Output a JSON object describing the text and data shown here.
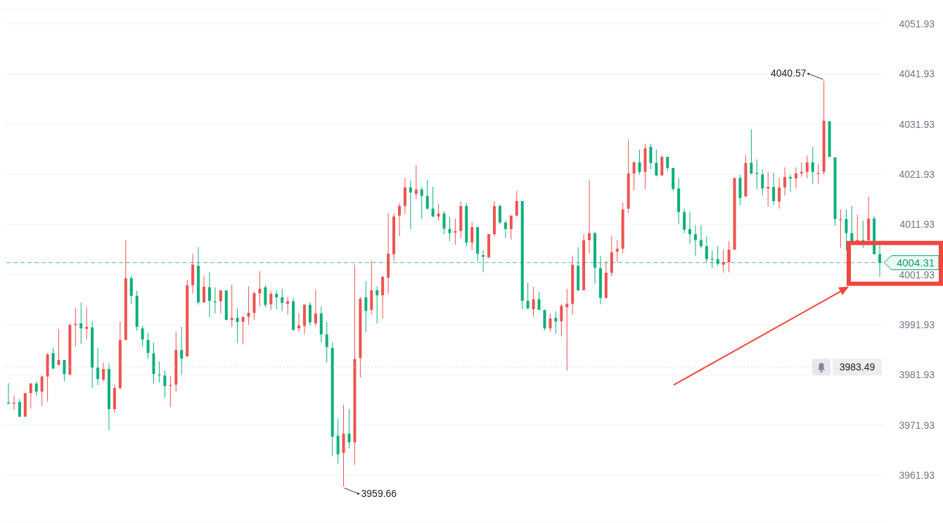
{
  "chart_data": {
    "type": "candlestick",
    "categories": [
      null,
      null,
      null,
      null,
      null,
      null,
      null,
      null,
      null,
      null,
      null,
      null,
      null,
      null,
      null,
      null,
      null,
      null,
      null,
      null,
      null,
      null,
      null,
      null,
      null,
      null,
      null,
      null,
      null,
      null,
      null,
      null,
      null,
      null,
      null,
      null,
      null,
      null,
      null,
      null,
      null,
      null,
      null,
      null,
      null,
      null,
      null,
      null,
      null,
      null,
      null,
      null,
      null,
      null,
      null,
      null,
      null,
      null,
      null,
      null,
      null,
      null,
      null,
      null,
      null,
      null,
      null,
      null,
      null,
      null,
      null,
      null,
      null,
      null,
      null,
      null,
      null,
      null,
      null,
      null,
      null,
      null,
      null,
      null,
      null,
      null,
      null,
      null,
      null,
      null,
      null,
      null,
      null,
      null,
      null,
      null,
      null,
      null,
      null,
      null,
      null,
      null,
      null,
      null,
      null,
      null,
      null,
      null,
      null,
      null,
      null,
      null,
      null,
      null,
      null,
      null,
      null,
      null,
      null,
      null,
      null,
      null,
      null,
      null,
      null,
      null,
      null,
      null,
      null,
      null,
      null,
      null,
      null,
      null,
      null,
      null,
      null,
      null,
      null,
      null,
      null,
      null,
      null,
      null,
      null,
      null,
      null,
      null,
      null,
      null,
      null,
      null,
      null,
      null,
      null,
      null,
      null
    ],
    "ohlc": [
      [
        3976.4,
        3980.3,
        3976.1,
        3976.2
      ],
      [
        3976.2,
        3977.8,
        3975.0,
        3976.4
      ],
      [
        3976.5,
        3977.1,
        3973.6,
        3973.6
      ],
      [
        3973.6,
        3978.3,
        3973.6,
        3978.3
      ],
      [
        3978.3,
        3980.3,
        3975.2,
        3980.2
      ],
      [
        3980.2,
        3980.6,
        3977.8,
        3978.6
      ],
      [
        3978.6,
        3981.8,
        3975.8,
        3981.6
      ],
      [
        3981.6,
        3986.3,
        3976.6,
        3986.0
      ],
      [
        3986.3,
        3987.3,
        3983.1,
        3983.2
      ],
      [
        3983.9,
        3991.1,
        3983.9,
        3984.9
      ],
      [
        3984.9,
        3984.9,
        3980.7,
        3982.1
      ],
      [
        3982.0,
        3992.1,
        3981.8,
        3991.9
      ],
      [
        3991.9,
        3995.3,
        3987.6,
        3992.1
      ],
      [
        3992.2,
        3996.3,
        3988.1,
        3991.2
      ],
      [
        3991.1,
        3995.4,
        3989.0,
        3991.5
      ],
      [
        3991.4,
        3992.6,
        3979.3,
        3983.4
      ],
      [
        3983.4,
        3987.3,
        3979.9,
        3981.1
      ],
      [
        3981.0,
        3984.4,
        3980.6,
        3983.1
      ],
      [
        3983.1,
        3984.2,
        3970.9,
        3975.1
      ],
      [
        3975.1,
        3980.0,
        3974.4,
        3979.3
      ],
      [
        3979.3,
        3992.6,
        3979.0,
        3988.9
      ],
      [
        3988.9,
        4008.8,
        3988.9,
        4001.2
      ],
      [
        4001.2,
        4001.7,
        3996.1,
        3997.7
      ],
      [
        3997.7,
        3998.7,
        3990.7,
        3991.5
      ],
      [
        3991.2,
        3991.7,
        3987.5,
        3989.0
      ],
      [
        3988.9,
        3990.3,
        3985.2,
        3986.3
      ],
      [
        3986.2,
        3988.4,
        3980.2,
        3982.1
      ],
      [
        3982.0,
        3984.6,
        3980.4,
        3981.9
      ],
      [
        3981.8,
        3982.8,
        3977.4,
        3979.7
      ],
      [
        3979.8,
        3981.7,
        3975.5,
        3979.9
      ],
      [
        3980.0,
        3990.5,
        3978.6,
        3986.9
      ],
      [
        3986.9,
        3991.5,
        3982.0,
        3985.2
      ],
      [
        3985.6,
        4000.9,
        3985.6,
        3999.8
      ],
      [
        3999.8,
        4006.1,
        3998.1,
        4003.9
      ],
      [
        4003.7,
        4007.4,
        3995.9,
        3996.4
      ],
      [
        3996.4,
        4001.7,
        3996.3,
        3999.5
      ],
      [
        3999.4,
        4002.4,
        3993.5,
        3996.7
      ],
      [
        3996.6,
        3999.4,
        3994.2,
        3996.5
      ],
      [
        3996.6,
        3998.8,
        3994.2,
        3998.8
      ],
      [
        3998.8,
        3998.8,
        3992.8,
        3992.9
      ],
      [
        3992.9,
        3999.9,
        3991.5,
        3993.3
      ],
      [
        3993.3,
        3995.2,
        3988.3,
        3992.5
      ],
      [
        3992.5,
        3993.5,
        3988.0,
        3993.5
      ],
      [
        3993.5,
        3999.6,
        3991.9,
        3994.3
      ],
      [
        3994.3,
        3998.5,
        3992.9,
        3998.2
      ],
      [
        3998.2,
        4002.6,
        3995.7,
        3999.1
      ],
      [
        3999.4,
        3999.8,
        3995.4,
        3995.9
      ],
      [
        3996.0,
        3998.7,
        3994.9,
        3998.1
      ],
      [
        3998.1,
        3998.7,
        3995.0,
        3997.4
      ],
      [
        3997.4,
        3999.1,
        3994.6,
        3996.3
      ],
      [
        3996.1,
        3997.5,
        3994.0,
        3996.6
      ],
      [
        3996.6,
        3997.3,
        3990.7,
        3990.9
      ],
      [
        3991.2,
        3994.3,
        3990.5,
        3991.8
      ],
      [
        3991.7,
        3996.1,
        3990.0,
        3995.9
      ],
      [
        3995.9,
        3996.4,
        3991.7,
        3992.4
      ],
      [
        3992.2,
        3998.9,
        3991.7,
        3994.2
      ],
      [
        3994.2,
        3995.6,
        3988.4,
        3990.0
      ],
      [
        3990.0,
        3992.5,
        3984.4,
        3987.5
      ],
      [
        3987.3,
        3988.4,
        3965.7,
        3969.6
      ],
      [
        3969.8,
        3973.2,
        3964.2,
        3966.1
      ],
      [
        3966.4,
        3976.0,
        3959.66,
        3970.2
      ],
      [
        3970.2,
        3975.1,
        3967.3,
        3968.5
      ],
      [
        3968.5,
        4003.9,
        3964.0,
        3985.1
      ],
      [
        3985.3,
        3997.5,
        3981.4,
        3997.1
      ],
      [
        3997.4,
        4000.6,
        3990.5,
        3994.7
      ],
      [
        3994.9,
        4004.7,
        3994.0,
        3998.8
      ],
      [
        3998.8,
        3999.6,
        3992.2,
        3997.8
      ],
      [
        3997.8,
        4001.6,
        3993.2,
        4001.5
      ],
      [
        4001.3,
        4014.2,
        3998.1,
        4006.1
      ],
      [
        4006.0,
        4014.1,
        4004.7,
        4013.5
      ],
      [
        4013.7,
        4016.2,
        4009.6,
        4015.6
      ],
      [
        4015.6,
        4021.2,
        4014.1,
        4019.3
      ],
      [
        4019.3,
        4020.7,
        4011.0,
        4018.3
      ],
      [
        4018.0,
        4023.8,
        4017.0,
        4018.9
      ],
      [
        4018.9,
        4019.4,
        4013.0,
        4017.6
      ],
      [
        4017.6,
        4020.8,
        4014.8,
        4015.1
      ],
      [
        4015.1,
        4019.4,
        4013.4,
        4013.5
      ],
      [
        4013.5,
        4016.0,
        4012.7,
        4014.1
      ],
      [
        4014.1,
        4014.6,
        4010.0,
        4011.1
      ],
      [
        4011.0,
        4013.5,
        4008.6,
        4010.2
      ],
      [
        4010.3,
        4013.1,
        4007.9,
        4010.6
      ],
      [
        4010.6,
        4016.5,
        4009.2,
        4015.6
      ],
      [
        4015.6,
        4016.2,
        4007.5,
        4008.3
      ],
      [
        4008.3,
        4012.4,
        4006.8,
        4011.4
      ],
      [
        4011.4,
        4011.4,
        4004.6,
        4006.1
      ],
      [
        4005.8,
        4006.8,
        4002.4,
        4005.5
      ],
      [
        4005.4,
        4010.0,
        4005.1,
        4010.0
      ],
      [
        4010.0,
        4016.6,
        4009.5,
        4015.6
      ],
      [
        4015.6,
        4015.9,
        4012.0,
        4012.3
      ],
      [
        4012.3,
        4012.7,
        4009.2,
        4011.0
      ],
      [
        4011.0,
        4013.7,
        4008.9,
        4013.7
      ],
      [
        4013.7,
        4018.6,
        4013.5,
        4016.6
      ],
      [
        4016.6,
        4016.6,
        3995.0,
        3996.7
      ],
      [
        3996.7,
        4000.3,
        3995.0,
        3995.2
      ],
      [
        3995.0,
        3999.5,
        3993.5,
        3997.0
      ],
      [
        3997.0,
        3998.5,
        3994.9,
        3994.9
      ],
      [
        3994.9,
        3994.9,
        3990.8,
        3991.2
      ],
      [
        3991.2,
        3994.2,
        3990.5,
        3993.2
      ],
      [
        3993.3,
        3994.6,
        3990.1,
        3992.6
      ],
      [
        3992.6,
        3996.1,
        3989.6,
        3995.7
      ],
      [
        3995.4,
        3999.1,
        3982.8,
        3996.1
      ],
      [
        3996.1,
        4005.7,
        3994.0,
        4003.9
      ],
      [
        4003.7,
        4007.4,
        3998.7,
        3998.8
      ],
      [
        3998.8,
        4010.0,
        3998.8,
        4008.8
      ],
      [
        4008.8,
        4020.8,
        4006.2,
        4010.2
      ],
      [
        4010.2,
        4010.4,
        4000.1,
        4003.3
      ],
      [
        4003.2,
        4005.7,
        3996.0,
        3997.3
      ],
      [
        3997.3,
        4004.6,
        3997.1,
        4002.3
      ],
      [
        4002.3,
        4009.7,
        4001.6,
        4006.4
      ],
      [
        4006.5,
        4008.8,
        4004.4,
        4007.1
      ],
      [
        4007.1,
        4016.3,
        4006.2,
        4014.9
      ],
      [
        4015.1,
        4028.9,
        4014.2,
        4022.1
      ],
      [
        4022.1,
        4024.6,
        4018.7,
        4024.3
      ],
      [
        4024.3,
        4026.8,
        4021.9,
        4022.4
      ],
      [
        4022.4,
        4028.0,
        4019.0,
        4027.1
      ],
      [
        4027.4,
        4028.0,
        4022.9,
        4024.2
      ],
      [
        4024.2,
        4026.8,
        4021.5,
        4021.7
      ],
      [
        4021.7,
        4025.7,
        4021.7,
        4025.4
      ],
      [
        4025.4,
        4025.4,
        4022.5,
        4023.2
      ],
      [
        4023.2,
        4023.2,
        4018.6,
        4019.0
      ],
      [
        4019.1,
        4021.2,
        4012.0,
        4014.4
      ],
      [
        4014.4,
        4015.1,
        4010.2,
        4010.9
      ],
      [
        4011.0,
        4014.5,
        4008.1,
        4010.0
      ],
      [
        4010.0,
        4011.8,
        4005.7,
        4008.8
      ],
      [
        4008.8,
        4011.8,
        4007.2,
        4007.6
      ],
      [
        4007.6,
        4009.6,
        4004.3,
        4005.0
      ],
      [
        4005.1,
        4006.7,
        4003.2,
        4005.0
      ],
      [
        4005.0,
        4007.6,
        4003.6,
        4004.1
      ],
      [
        4003.9,
        4006.9,
        4002.3,
        4004.4
      ],
      [
        4004.4,
        4008.6,
        4002.4,
        4006.9
      ],
      [
        4006.9,
        4021.2,
        4006.9,
        4021.2
      ],
      [
        4021.2,
        4021.8,
        4015.8,
        4017.2
      ],
      [
        4017.5,
        4025.7,
        4017.5,
        4024.2
      ],
      [
        4024.2,
        4030.9,
        4021.9,
        4022.1
      ],
      [
        4022.2,
        4024.9,
        4019.0,
        4022.1
      ],
      [
        4021.9,
        4022.9,
        4017.7,
        4019.1
      ],
      [
        4019.1,
        4022.5,
        4015.5,
        4019.4
      ],
      [
        4019.4,
        4022.2,
        4015.8,
        4016.6
      ],
      [
        4016.5,
        4021.2,
        4015.1,
        4019.3
      ],
      [
        4019.3,
        4023.3,
        4017.7,
        4021.4
      ],
      [
        4021.4,
        4021.8,
        4018.4,
        4021.1
      ],
      [
        4021.1,
        4023.3,
        4019.1,
        4022.1
      ],
      [
        4022.1,
        4024.3,
        4021.4,
        4022.4
      ],
      [
        4022.4,
        4025.7,
        4021.2,
        4024.3
      ],
      [
        4024.3,
        4027.4,
        4020.0,
        4022.4
      ],
      [
        4022.1,
        4024.0,
        4020.1,
        4022.2
      ],
      [
        4022.4,
        4040.57,
        4021.8,
        4032.6
      ],
      [
        4032.5,
        4032.5,
        4025.4,
        4025.4
      ],
      [
        4025.3,
        4025.3,
        4011.7,
        4013.0
      ],
      [
        4012.9,
        4014.9,
        4007.2,
        4013.0
      ],
      [
        4013.0,
        4014.9,
        4006.7,
        4010.2
      ],
      [
        4010.2,
        4015.6,
        4008.2,
        4008.5
      ],
      [
        4008.6,
        4013.9,
        4008.1,
        4008.8
      ],
      [
        4008.8,
        4012.7,
        4007.2,
        4008.7
      ],
      [
        4008.8,
        4017.5,
        4008.5,
        4013.1
      ],
      [
        4013.1,
        4013.5,
        4006.0,
        4006.0
      ],
      [
        4006.0,
        4007.8,
        4001.5,
        4004.31
      ]
    ],
    "colors": [
      "#0bb07b",
      "#ef5350",
      "#0bb07b",
      "#ef5350",
      "#ef5350",
      "#0bb07b",
      "#ef5350",
      "#ef5350",
      "#0bb07b",
      "#ef5350",
      "#0bb07b",
      "#ef5350",
      "#ef5350",
      "#0bb07b",
      "#ef5350",
      "#0bb07b",
      "#0bb07b",
      "#ef5350",
      "#0bb07b",
      "#ef5350",
      "#ef5350",
      "#ef5350",
      "#0bb07b",
      "#0bb07b",
      "#0bb07b",
      "#0bb07b",
      "#0bb07b",
      "#0bb07b",
      "#0bb07b",
      "#ef5350",
      "#ef5350",
      "#0bb07b",
      "#ef5350",
      "#ef5350",
      "#0bb07b",
      "#ef5350",
      "#0bb07b",
      "#0bb07b",
      "#ef5350",
      "#0bb07b",
      "#ef5350",
      "#0bb07b",
      "#ef5350",
      "#ef5350",
      "#ef5350",
      "#ef5350",
      "#0bb07b",
      "#ef5350",
      "#0bb07b",
      "#0bb07b",
      "#ef5350",
      "#0bb07b",
      "#ef5350",
      "#ef5350",
      "#0bb07b",
      "#ef5350",
      "#0bb07b",
      "#0bb07b",
      "#0bb07b",
      "#0bb07b",
      "#ef5350",
      "#0bb07b",
      "#ef5350",
      "#ef5350",
      "#0bb07b",
      "#ef5350",
      "#0bb07b",
      "#ef5350",
      "#ef5350",
      "#ef5350",
      "#ef5350",
      "#ef5350",
      "#0bb07b",
      "#ef5350",
      "#0bb07b",
      "#0bb07b",
      "#0bb07b",
      "#ef5350",
      "#0bb07b",
      "#0bb07b",
      "#ef5350",
      "#ef5350",
      "#0bb07b",
      "#ef5350",
      "#0bb07b",
      "#0bb07b",
      "#ef5350",
      "#ef5350",
      "#0bb07b",
      "#0bb07b",
      "#ef5350",
      "#ef5350",
      "#0bb07b",
      "#0bb07b",
      "#ef5350",
      "#0bb07b",
      "#0bb07b",
      "#ef5350",
      "#0bb07b",
      "#ef5350",
      "#ef5350",
      "#ef5350",
      "#0bb07b",
      "#ef5350",
      "#ef5350",
      "#0bb07b",
      "#0bb07b",
      "#ef5350",
      "#ef5350",
      "#ef5350",
      "#ef5350",
      "#ef5350",
      "#ef5350",
      "#0bb07b",
      "#ef5350",
      "#0bb07b",
      "#0bb07b",
      "#ef5350",
      "#0bb07b",
      "#0bb07b",
      "#0bb07b",
      "#0bb07b",
      "#0bb07b",
      "#0bb07b",
      "#0bb07b",
      "#0bb07b",
      "#0bb07b",
      "#0bb07b",
      "#ef5350",
      "#ef5350",
      "#ef5350",
      "#0bb07b",
      "#ef5350",
      "#0bb07b",
      "#0bb07b",
      "#0bb07b",
      "#ef5350",
      "#0bb07b",
      "#ef5350",
      "#ef5350",
      "#0bb07b",
      "#ef5350",
      "#ef5350",
      "#ef5350",
      "#0bb07b",
      "#ef5350",
      "#ef5350",
      "#0bb07b",
      "#0bb07b",
      "#ef5350",
      "#0bb07b",
      "#0bb07b",
      "#ef5350",
      "#0bb07b",
      "#ef5350",
      "#0bb07b",
      "#0bb07b"
    ],
    "ylim": [
      3952.4,
      4055
    ],
    "yticks": [
      3961.93,
      3971.93,
      3981.93,
      3991.93,
      4001.93,
      4011.93,
      4021.93,
      4031.93,
      4041.93,
      4051.93
    ],
    "grid": "y",
    "tick_labels": "y",
    "ref_lines": [
      {
        "axis": "y",
        "value": 4004.31,
        "label": "4004.31",
        "color": "#0a9e6a",
        "line_style": "dashed"
      },
      {
        "axis": "y",
        "value": 3983.49,
        "label": "3983.49",
        "color": "#c9ced8",
        "line_style": "dotted"
      }
    ],
    "annotations": [
      "4040.57",
      "3959.66"
    ]
  }
}
